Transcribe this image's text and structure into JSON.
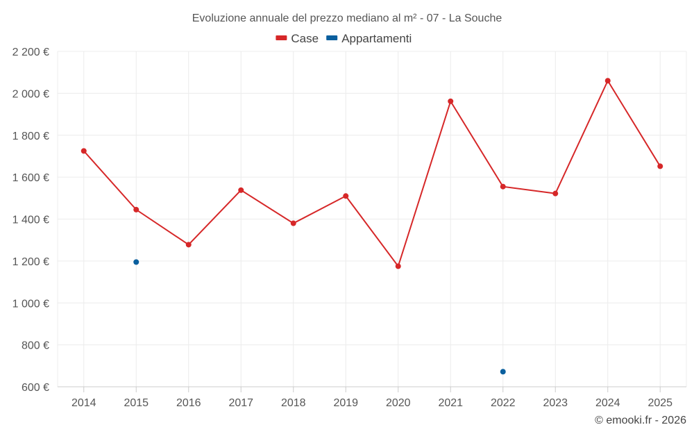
{
  "chart_data": {
    "type": "line",
    "title": "Evoluzione annuale del prezzo mediano al m² - 07 - La Souche",
    "categories": [
      "2014",
      "2015",
      "2016",
      "2017",
      "2018",
      "2019",
      "2020",
      "2021",
      "2022",
      "2023",
      "2024",
      "2025"
    ],
    "y_ticks": [
      600,
      800,
      1000,
      1200,
      1400,
      1600,
      1800,
      2000,
      2200
    ],
    "y_tick_labels": [
      "600 €",
      "800 €",
      "1 000 €",
      "1 200 €",
      "1 400 €",
      "1 600 €",
      "1 800 €",
      "2 000 €",
      "2 200 €"
    ],
    "ylim": [
      600,
      2200
    ],
    "ylabel": "",
    "xlabel": "",
    "legend_position": "top-center",
    "series": [
      {
        "name": "Case",
        "color": "#d62728",
        "values": [
          1725,
          1445,
          1278,
          1538,
          1380,
          1510,
          1175,
          1962,
          1555,
          1522,
          2060,
          1652
        ]
      },
      {
        "name": "Appartamenti",
        "color": "#0a5f9e",
        "values": [
          null,
          1195,
          null,
          null,
          null,
          null,
          null,
          null,
          672,
          null,
          null,
          null
        ]
      }
    ],
    "credit": "© emooki.fr - 2026"
  }
}
